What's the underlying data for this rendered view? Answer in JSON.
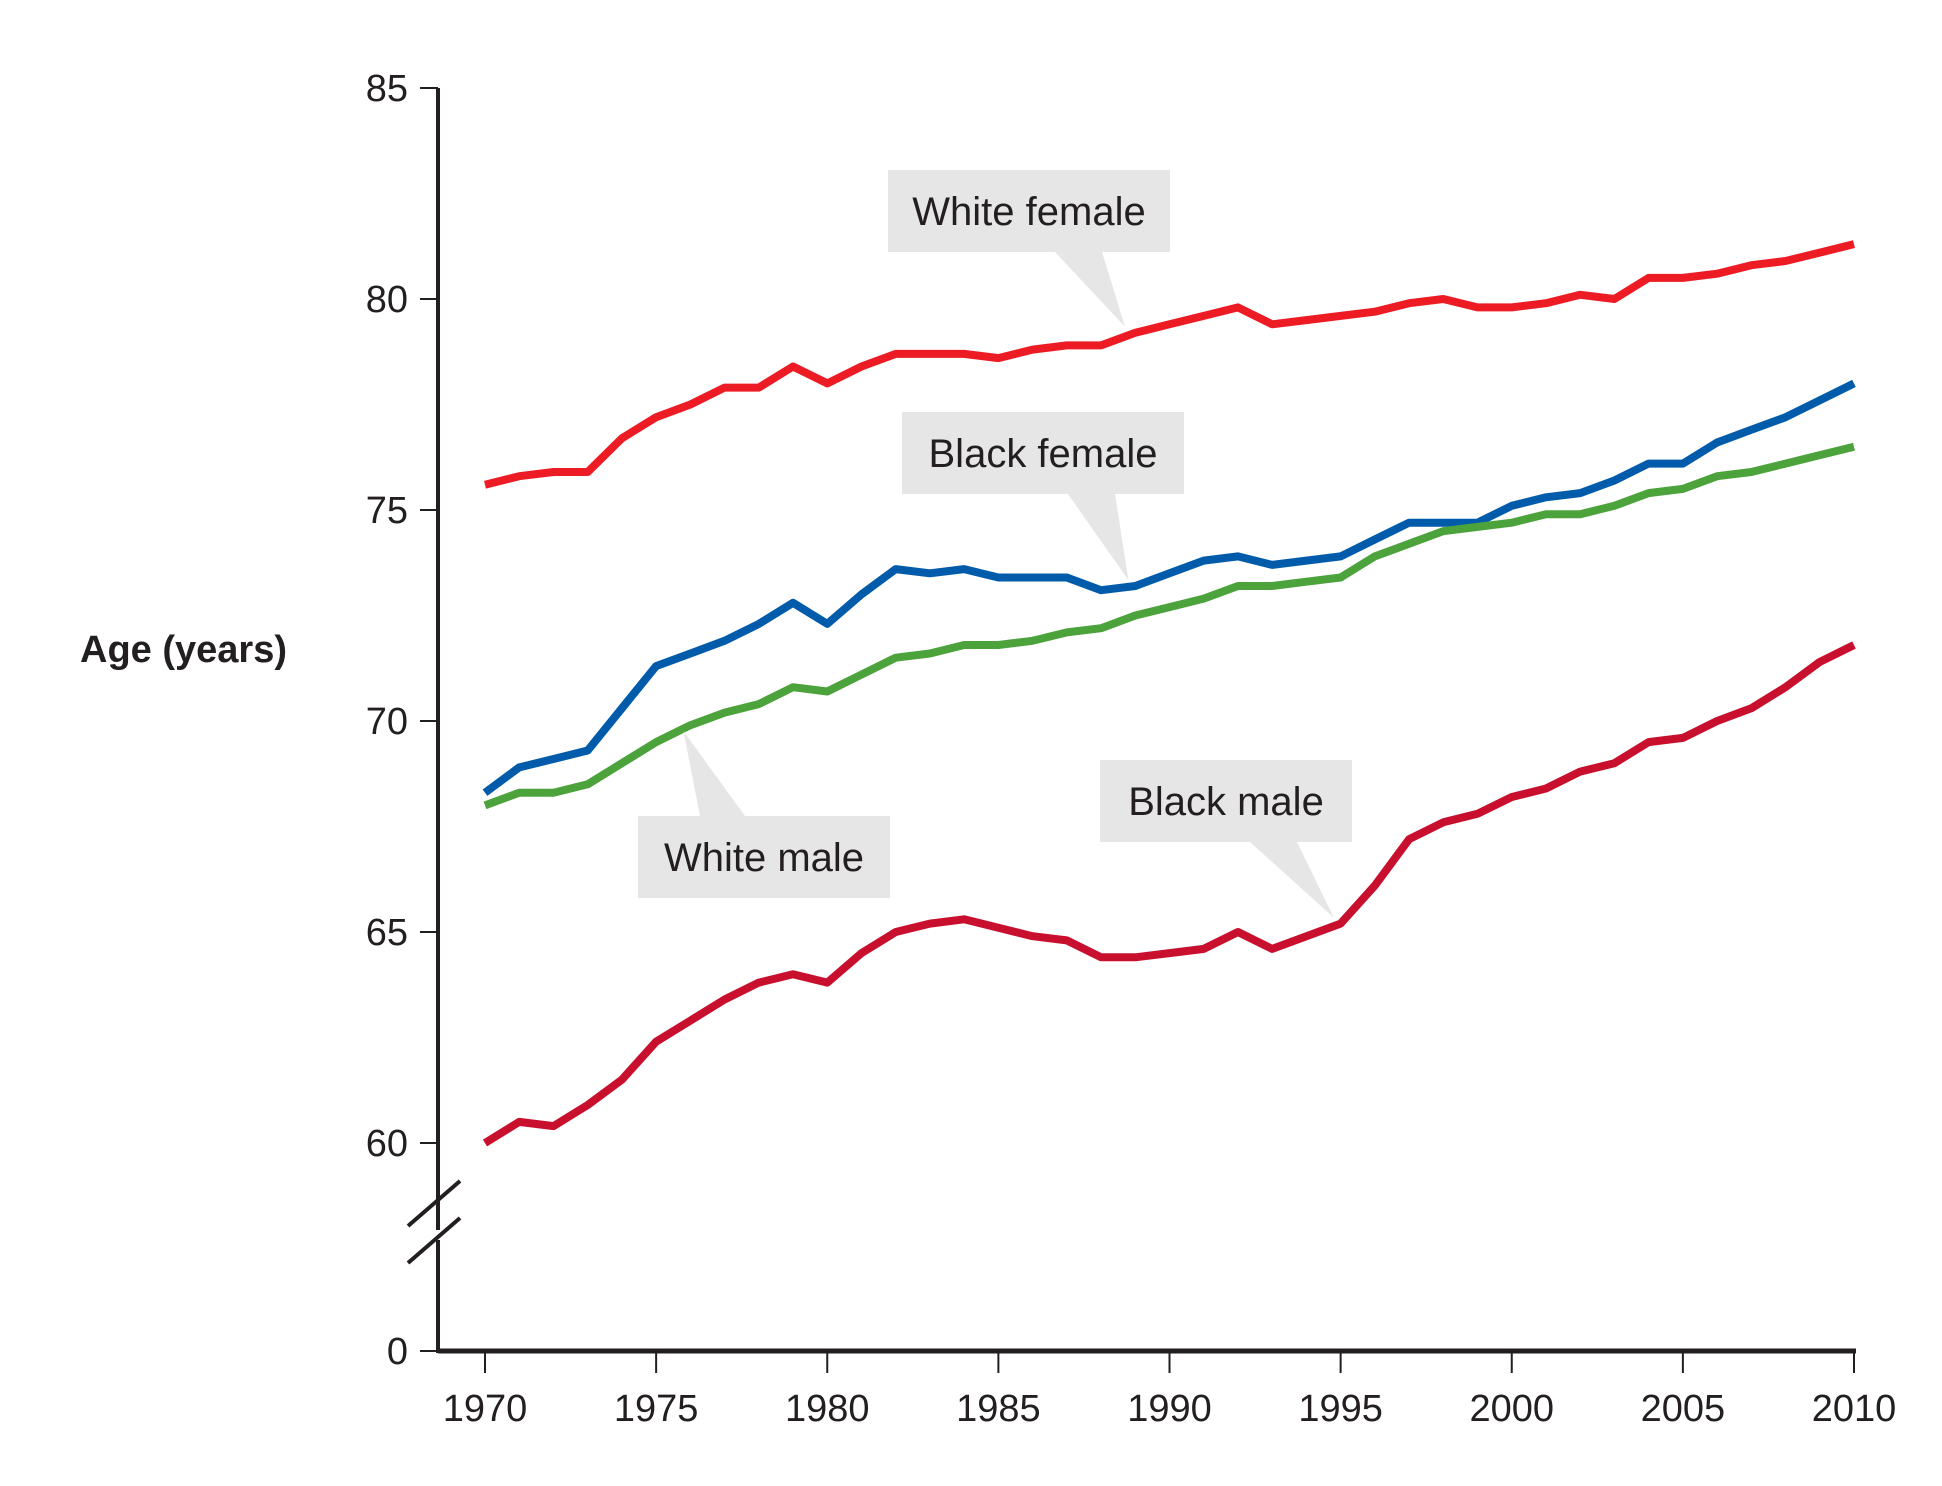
{
  "chart_data": {
    "type": "line",
    "title": "",
    "xlabel": "",
    "ylabel": "Age (years)",
    "x": [
      1970,
      1971,
      1972,
      1973,
      1974,
      1975,
      1976,
      1977,
      1978,
      1979,
      1980,
      1981,
      1982,
      1983,
      1984,
      1985,
      1986,
      1987,
      1988,
      1989,
      1990,
      1991,
      1992,
      1993,
      1994,
      1995,
      1996,
      1997,
      1998,
      1999,
      2000,
      2001,
      2002,
      2003,
      2004,
      2005,
      2006,
      2007,
      2008,
      2009,
      2010
    ],
    "xlim": [
      1970,
      2010
    ],
    "ylim": [
      0,
      85
    ],
    "y_axis_break": [
      0,
      60
    ],
    "x_ticks": [
      "1970",
      "1975",
      "1980",
      "1985",
      "1990",
      "1995",
      "2000",
      "2005",
      "2010"
    ],
    "y_ticks": [
      "0",
      "60",
      "65",
      "70",
      "75",
      "80",
      "85"
    ],
    "grid": false,
    "legend": "inline callouts",
    "series": [
      {
        "name": "White female",
        "color": "#ed1c24",
        "values": [
          75.6,
          75.8,
          75.9,
          75.9,
          76.7,
          77.2,
          77.5,
          77.9,
          77.9,
          78.4,
          78.0,
          78.4,
          78.7,
          78.7,
          78.7,
          78.6,
          78.8,
          78.9,
          78.9,
          79.2,
          79.4,
          79.6,
          79.8,
          79.4,
          79.5,
          79.6,
          79.7,
          79.9,
          80.0,
          79.8,
          79.8,
          79.9,
          80.1,
          80.0,
          80.5,
          80.5,
          80.6,
          80.8,
          80.9,
          81.1,
          81.3
        ],
        "callout": {
          "label": "White female",
          "year": 1988.7
        }
      },
      {
        "name": "Black female",
        "color": "#005baa",
        "values": [
          68.3,
          68.9,
          69.1,
          69.3,
          70.3,
          71.3,
          71.6,
          71.9,
          72.3,
          72.8,
          72.3,
          73.0,
          73.6,
          73.5,
          73.6,
          73.4,
          73.4,
          73.4,
          73.1,
          73.2,
          73.5,
          73.8,
          73.9,
          73.7,
          73.8,
          73.9,
          74.3,
          74.7,
          74.7,
          74.7,
          75.1,
          75.3,
          75.4,
          75.7,
          76.1,
          76.1,
          76.6,
          76.9,
          77.2,
          77.6,
          78.0
        ],
        "callout": {
          "label": "Black female",
          "year": 1988.8
        }
      },
      {
        "name": "White male",
        "color": "#4ca33b",
        "values": [
          68.0,
          68.3,
          68.3,
          68.5,
          69.0,
          69.5,
          69.9,
          70.2,
          70.4,
          70.8,
          70.7,
          71.1,
          71.5,
          71.6,
          71.8,
          71.8,
          71.9,
          72.1,
          72.2,
          72.5,
          72.7,
          72.9,
          73.2,
          73.2,
          73.3,
          73.4,
          73.9,
          74.2,
          74.5,
          74.6,
          74.7,
          74.9,
          74.9,
          75.1,
          75.4,
          75.5,
          75.8,
          75.9,
          76.1,
          76.3,
          76.5
        ],
        "callout": {
          "label": "White male",
          "year": 1975.8
        }
      },
      {
        "name": "Black male",
        "color": "#c8102e",
        "values": [
          60.0,
          60.5,
          60.4,
          60.9,
          61.5,
          62.4,
          62.9,
          63.4,
          63.8,
          64.0,
          63.8,
          64.5,
          65.0,
          65.2,
          65.3,
          65.1,
          64.9,
          64.8,
          64.4,
          64.4,
          64.5,
          64.6,
          65.0,
          64.6,
          64.9,
          65.2,
          66.1,
          67.2,
          67.6,
          67.8,
          68.2,
          68.4,
          68.8,
          69.0,
          69.5,
          69.6,
          70.0,
          70.3,
          70.8,
          71.4,
          71.8
        ],
        "callout": {
          "label": "Black male",
          "year": 1994.8
        }
      }
    ]
  }
}
